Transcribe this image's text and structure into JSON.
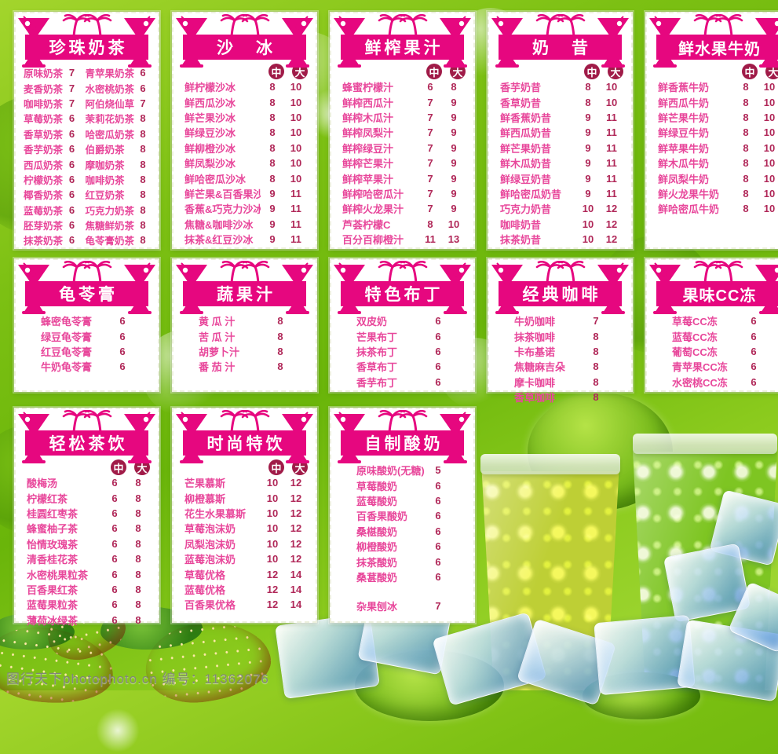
{
  "watermark": "图行天下photophoto.cn 编号：11362076",
  "size_labels": {
    "m": "中",
    "l": "大"
  },
  "colors": {
    "banner_pink": "#e6077f",
    "item_pink": "#e8479b",
    "price_crimson": "#b02758",
    "size_badge_bg": "#a01b48",
    "background_green": "#7cc013"
  },
  "icons": [
    "cocktail-glass-icon",
    "palm-trees-icon"
  ],
  "cards": [
    {
      "title": "珍珠奶茶",
      "type": "two-col",
      "left_items": [
        {
          "name": "原味奶茶",
          "price": "7"
        },
        {
          "name": "麦香奶茶",
          "price": "7"
        },
        {
          "name": "咖啡奶茶",
          "price": "7"
        },
        {
          "name": "草莓奶茶",
          "price": "6"
        },
        {
          "name": "香草奶茶",
          "price": "6"
        },
        {
          "name": "香芋奶茶",
          "price": "6"
        },
        {
          "name": "西瓜奶茶",
          "price": "6"
        },
        {
          "name": "柠檬奶茶",
          "price": "6"
        },
        {
          "name": "椰香奶茶",
          "price": "6"
        },
        {
          "name": "蓝莓奶茶",
          "price": "6"
        },
        {
          "name": "胚芽奶茶",
          "price": "6"
        },
        {
          "name": "抹茶奶茶",
          "price": "6"
        }
      ],
      "right_items": [
        {
          "name": "青苹果奶茶",
          "price": "6"
        },
        {
          "name": "水密桃奶茶",
          "price": "6"
        },
        {
          "name": "阿伯烧仙草",
          "price": "7"
        },
        {
          "name": "茉莉花奶茶",
          "price": "8"
        },
        {
          "name": "哈密瓜奶茶",
          "price": "8"
        },
        {
          "name": "伯爵奶茶",
          "price": "8"
        },
        {
          "name": "摩咖奶茶",
          "price": "8"
        },
        {
          "name": "咖啡奶茶",
          "price": "8"
        },
        {
          "name": "红豆奶茶",
          "price": "8"
        },
        {
          "name": "巧克力奶茶",
          "price": "8"
        },
        {
          "name": "焦糖鲜奶茶",
          "price": "8"
        },
        {
          "name": "龟苓膏奶茶",
          "price": "8"
        }
      ]
    },
    {
      "title": "沙　冰",
      "type": "sized",
      "items": [
        {
          "name": "鲜柠檬沙冰",
          "m": "8",
          "l": "10"
        },
        {
          "name": "鲜西瓜沙冰",
          "m": "8",
          "l": "10"
        },
        {
          "name": "鲜芒果沙冰",
          "m": "8",
          "l": "10"
        },
        {
          "name": "鲜绿豆沙冰",
          "m": "8",
          "l": "10"
        },
        {
          "name": "鲜柳橙沙冰",
          "m": "8",
          "l": "10"
        },
        {
          "name": "鲜凤梨沙冰",
          "m": "8",
          "l": "10"
        },
        {
          "name": "鲜哈密瓜沙冰",
          "m": "8",
          "l": "10"
        },
        {
          "name": "鲜芒果&百香果沙冰",
          "m": "9",
          "l": "11"
        },
        {
          "name": "香蕉&巧克力沙冰",
          "m": "9",
          "l": "11"
        },
        {
          "name": "焦糖&咖啡沙冰",
          "m": "9",
          "l": "11"
        },
        {
          "name": "抹茶&红豆沙冰",
          "m": "9",
          "l": "11"
        }
      ]
    },
    {
      "title": "鲜榨果汁",
      "type": "sized",
      "items": [
        {
          "name": "蜂蜜柠檬汁",
          "m": "6",
          "l": "8"
        },
        {
          "name": "鲜榨西瓜汁",
          "m": "7",
          "l": "9"
        },
        {
          "name": "鲜榨木瓜汁",
          "m": "7",
          "l": "9"
        },
        {
          "name": "鲜榨凤梨汁",
          "m": "7",
          "l": "9"
        },
        {
          "name": "鲜榨绿豆汁",
          "m": "7",
          "l": "9"
        },
        {
          "name": "鲜榨芒果汁",
          "m": "7",
          "l": "9"
        },
        {
          "name": "鲜榨苹果汁",
          "m": "7",
          "l": "9"
        },
        {
          "name": "鲜榨哈密瓜汁",
          "m": "7",
          "l": "9"
        },
        {
          "name": "鲜榨火龙果汁",
          "m": "7",
          "l": "9"
        },
        {
          "name": "芦荟柠檬C",
          "m": "8",
          "l": "10"
        },
        {
          "name": "百分百柳橙汁",
          "m": "11",
          "l": "13"
        }
      ]
    },
    {
      "title": "奶　昔",
      "type": "sized",
      "items": [
        {
          "name": "香芋奶昔",
          "m": "8",
          "l": "10"
        },
        {
          "name": "香草奶昔",
          "m": "8",
          "l": "10"
        },
        {
          "name": "鲜香蕉奶昔",
          "m": "9",
          "l": "11"
        },
        {
          "name": "鲜西瓜奶昔",
          "m": "9",
          "l": "11"
        },
        {
          "name": "鲜芒果奶昔",
          "m": "9",
          "l": "11"
        },
        {
          "name": "鲜木瓜奶昔",
          "m": "9",
          "l": "11"
        },
        {
          "name": "鲜绿豆奶昔",
          "m": "9",
          "l": "11"
        },
        {
          "name": "鲜哈密瓜奶昔",
          "m": "9",
          "l": "11"
        },
        {
          "name": "巧克力奶昔",
          "m": "10",
          "l": "12"
        },
        {
          "name": "咖啡奶昔",
          "m": "10",
          "l": "12"
        },
        {
          "name": "抹茶奶昔",
          "m": "10",
          "l": "12"
        }
      ]
    },
    {
      "title": "鲜水果牛奶",
      "type": "sized",
      "items": [
        {
          "name": "鲜香蕉牛奶",
          "m": "8",
          "l": "10"
        },
        {
          "name": "鲜西瓜牛奶",
          "m": "8",
          "l": "10"
        },
        {
          "name": "鲜芒果牛奶",
          "m": "8",
          "l": "10"
        },
        {
          "name": "鲜绿豆牛奶",
          "m": "8",
          "l": "10"
        },
        {
          "name": "鲜苹果牛奶",
          "m": "8",
          "l": "10"
        },
        {
          "name": "鲜木瓜牛奶",
          "m": "8",
          "l": "10"
        },
        {
          "name": "鲜凤梨牛奶",
          "m": "8",
          "l": "10"
        },
        {
          "name": "鲜火龙果牛奶",
          "m": "8",
          "l": "10"
        },
        {
          "name": "鲜哈密瓜牛奶",
          "m": "8",
          "l": "10"
        }
      ]
    },
    {
      "title": "龟苓膏",
      "type": "simple",
      "items": [
        {
          "name": "蜂密龟苓膏",
          "price": "6"
        },
        {
          "name": "绿豆龟苓膏",
          "price": "6"
        },
        {
          "name": "红豆龟苓膏",
          "price": "6"
        },
        {
          "name": "牛奶龟苓膏",
          "price": "6"
        }
      ]
    },
    {
      "title": "蔬果汁",
      "type": "simple",
      "items": [
        {
          "name": "黄 瓜 汁",
          "price": "8"
        },
        {
          "name": "苦 瓜 汁",
          "price": "8"
        },
        {
          "name": "胡萝卜汁",
          "price": "8"
        },
        {
          "name": "番 茄 汁",
          "price": "8"
        }
      ]
    },
    {
      "title": "特色布丁",
      "type": "simple",
      "items": [
        {
          "name": "双皮奶",
          "price": "6"
        },
        {
          "name": "芒果布丁",
          "price": "6"
        },
        {
          "name": "抹茶布丁",
          "price": "6"
        },
        {
          "name": "香草布丁",
          "price": "6"
        },
        {
          "name": "香芋布丁",
          "price": "6"
        }
      ]
    },
    {
      "title": "经典咖啡",
      "type": "simple",
      "items": [
        {
          "name": "牛奶咖啡",
          "price": "7"
        },
        {
          "name": "抹茶咖啡",
          "price": "8"
        },
        {
          "name": "卡布基诺",
          "price": "8"
        },
        {
          "name": "焦糖麻吉朵",
          "price": "8"
        },
        {
          "name": "摩卡咖啡",
          "price": "8"
        },
        {
          "name": "香草咖啡",
          "price": "8"
        }
      ]
    },
    {
      "title": "果味CC冻",
      "type": "simple",
      "items": [
        {
          "name": "草莓CC冻",
          "price": "6"
        },
        {
          "name": "蓝莓CC冻",
          "price": "6"
        },
        {
          "name": "葡萄CC冻",
          "price": "6"
        },
        {
          "name": "青苹果CC冻",
          "price": "6"
        },
        {
          "name": "水密桃CC冻",
          "price": "6"
        }
      ]
    },
    {
      "title": "轻松茶饮",
      "type": "sized",
      "items": [
        {
          "name": "酸梅汤",
          "m": "6",
          "l": "8"
        },
        {
          "name": "柠檬红茶",
          "m": "6",
          "l": "8"
        },
        {
          "name": "桂圆红枣茶",
          "m": "6",
          "l": "8"
        },
        {
          "name": "蜂蜜柚子茶",
          "m": "6",
          "l": "8"
        },
        {
          "name": "怡情玫瑰茶",
          "m": "6",
          "l": "8"
        },
        {
          "name": "清香桂花茶",
          "m": "6",
          "l": "8"
        },
        {
          "name": "水密桃果粒茶",
          "m": "6",
          "l": "8"
        },
        {
          "name": "百香果红茶",
          "m": "6",
          "l": "8"
        },
        {
          "name": "蓝莓果粒茶",
          "m": "6",
          "l": "8"
        },
        {
          "name": "薄荷冰绿茶",
          "m": "6",
          "l": "8"
        }
      ]
    },
    {
      "title": "时尚特饮",
      "type": "sized",
      "items": [
        {
          "name": "芒果慕斯",
          "m": "10",
          "l": "12"
        },
        {
          "name": "柳橙慕斯",
          "m": "10",
          "l": "12"
        },
        {
          "name": "花生水果慕斯",
          "m": "10",
          "l": "12"
        },
        {
          "name": "草莓泡沫奶",
          "m": "10",
          "l": "12"
        },
        {
          "name": "凤梨泡沫奶",
          "m": "10",
          "l": "12"
        },
        {
          "name": "蓝莓泡沫奶",
          "m": "10",
          "l": "12"
        },
        {
          "name": "草莓优格",
          "m": "12",
          "l": "14"
        },
        {
          "name": "蓝莓优格",
          "m": "12",
          "l": "14"
        },
        {
          "name": "百香果优格",
          "m": "12",
          "l": "14"
        }
      ]
    },
    {
      "title": "自制酸奶",
      "type": "simple",
      "items": [
        {
          "name": "原味酸奶(无糖)",
          "price": "5"
        },
        {
          "name": "草莓酸奶",
          "price": "6"
        },
        {
          "name": "蓝莓酸奶",
          "price": "6"
        },
        {
          "name": "百香果酸奶",
          "price": "6"
        },
        {
          "name": "桑椹酸奶",
          "price": "6"
        },
        {
          "name": "柳橙酸奶",
          "price": "6"
        },
        {
          "name": "抹茶酸奶",
          "price": "6"
        },
        {
          "name": "桑葚酸奶",
          "price": "6"
        },
        {
          "name": "杂果刨冰",
          "price": "7",
          "spacer": true
        }
      ]
    }
  ]
}
